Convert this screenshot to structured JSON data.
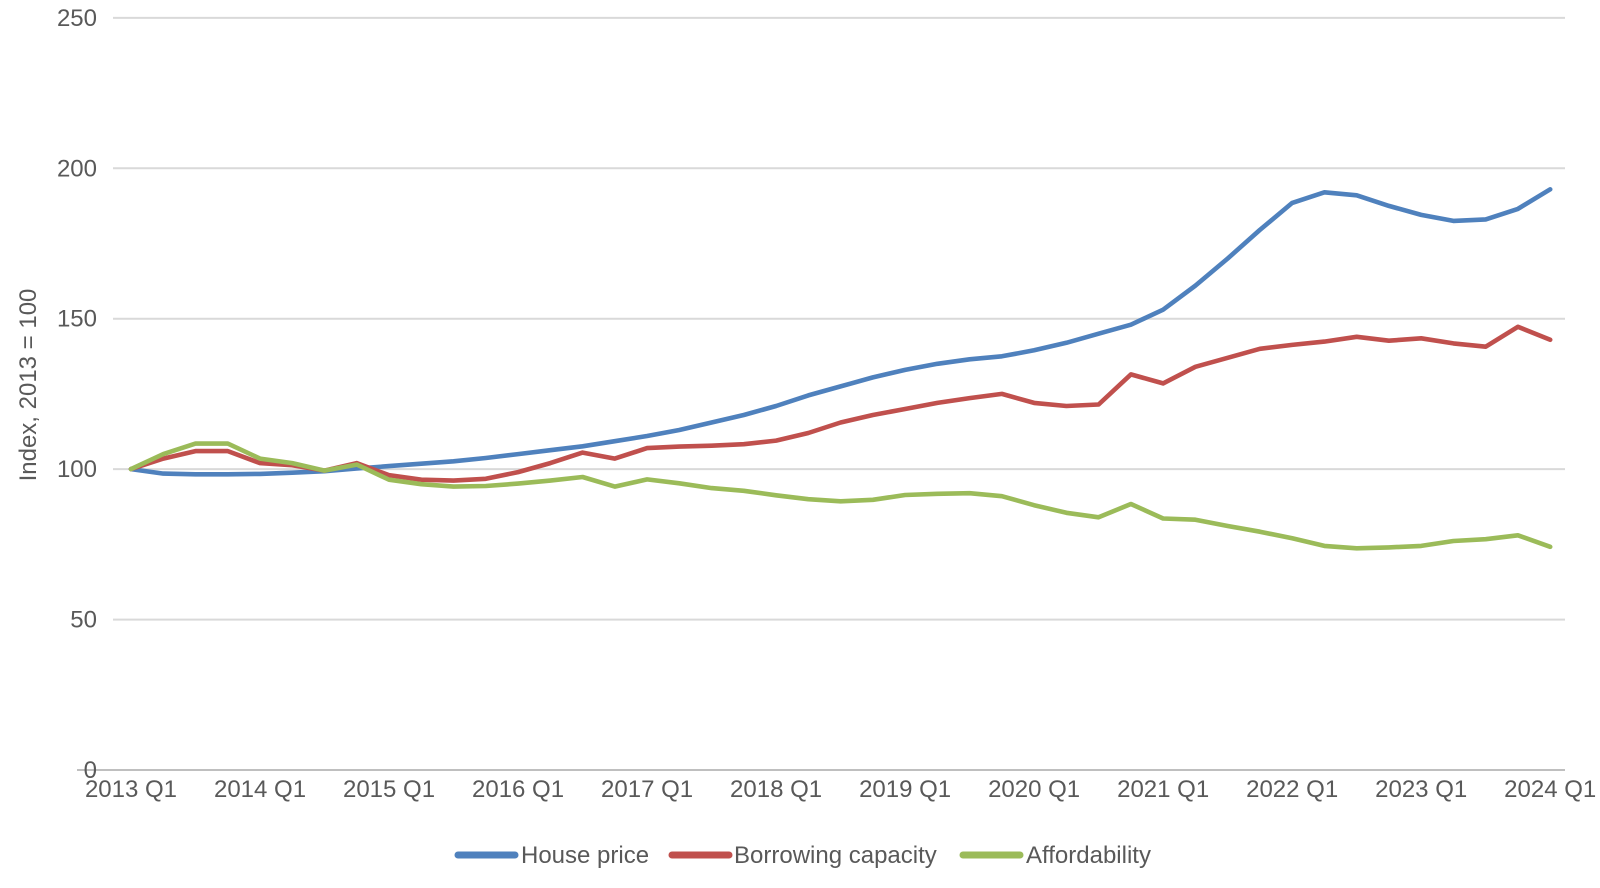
{
  "chart_data": {
    "type": "line",
    "title": "",
    "ylabel": "Index, 2013 = 100",
    "xlabel": "",
    "ylim": [
      0,
      250
    ],
    "yticks": [
      0,
      50,
      100,
      150,
      200,
      250
    ],
    "grid": "horizontal",
    "legend_position": "bottom",
    "gridline_color": "#D9D9D9",
    "axis_line_color": "#BFBFBF",
    "text_color": "#595959",
    "x_tick_labels": [
      "2013 Q1",
      "2014 Q1",
      "2015 Q1",
      "2016 Q1",
      "2017 Q1",
      "2018 Q1",
      "2019 Q1",
      "2020 Q1",
      "2021 Q1",
      "2022 Q1",
      "2023 Q1",
      "2024 Q1"
    ],
    "categories": [
      "2013 Q1",
      "2013 Q2",
      "2013 Q3",
      "2013 Q4",
      "2014 Q1",
      "2014 Q2",
      "2014 Q3",
      "2014 Q4",
      "2015 Q1",
      "2015 Q2",
      "2015 Q3",
      "2015 Q4",
      "2016 Q1",
      "2016 Q2",
      "2016 Q3",
      "2016 Q4",
      "2017 Q1",
      "2017 Q2",
      "2017 Q3",
      "2017 Q4",
      "2018 Q1",
      "2018 Q2",
      "2018 Q3",
      "2018 Q4",
      "2019 Q1",
      "2019 Q2",
      "2019 Q3",
      "2019 Q4",
      "2020 Q1",
      "2020 Q2",
      "2020 Q3",
      "2020 Q4",
      "2021 Q1",
      "2021 Q2",
      "2021 Q3",
      "2021 Q4",
      "2022 Q1",
      "2022 Q2",
      "2022 Q3",
      "2022 Q4",
      "2023 Q1",
      "2023 Q2",
      "2023 Q3",
      "2023 Q4",
      "2024 Q1"
    ],
    "series": [
      {
        "name": "House price",
        "color": "#4F81BD",
        "values": [
          100,
          98.5,
          98.3,
          98.3,
          98.4,
          98.8,
          99.3,
          100.2,
          101,
          101.8,
          102.6,
          103.7,
          105,
          106.3,
          107.6,
          109.3,
          111,
          113,
          115.5,
          118,
          121,
          124.5,
          127.5,
          130.5,
          133,
          135,
          136.5,
          137.5,
          139.5,
          142,
          145,
          148,
          153,
          161,
          170,
          179.5,
          188.5,
          192,
          191,
          187.5,
          184.5,
          182.5,
          183,
          186.5,
          193
        ]
      },
      {
        "name": "Borrowing capacity",
        "color": "#C0504D",
        "values": [
          100,
          103.5,
          106,
          106,
          102,
          101.3,
          99.5,
          102,
          98,
          96.5,
          96.2,
          96.8,
          99,
          102,
          105.5,
          103.5,
          107,
          107.5,
          107.8,
          108.3,
          109.5,
          112,
          115.5,
          118,
          120,
          122,
          123.6,
          125,
          122,
          121,
          121.5,
          131.5,
          128.5,
          134,
          137,
          140,
          141.3,
          142.4,
          144,
          142.7,
          143.5,
          141.8,
          140.7,
          147.3,
          143
        ]
      },
      {
        "name": "Affordability",
        "color": "#9BBB59",
        "values": [
          100,
          105,
          108.5,
          108.5,
          103.5,
          102,
          99.5,
          101.5,
          96.5,
          95,
          94.2,
          94.4,
          95.2,
          96.2,
          97.4,
          94.2,
          96.6,
          95.3,
          93.7,
          92.8,
          91.3,
          90,
          89.3,
          89.8,
          91.4,
          91.8,
          92,
          91,
          88,
          85.5,
          84,
          88.4,
          83.6,
          83.2,
          81.1,
          79.2,
          77,
          74.5,
          73.7,
          74,
          74.5,
          76.1,
          76.7,
          78,
          74.2
        ]
      }
    ]
  }
}
